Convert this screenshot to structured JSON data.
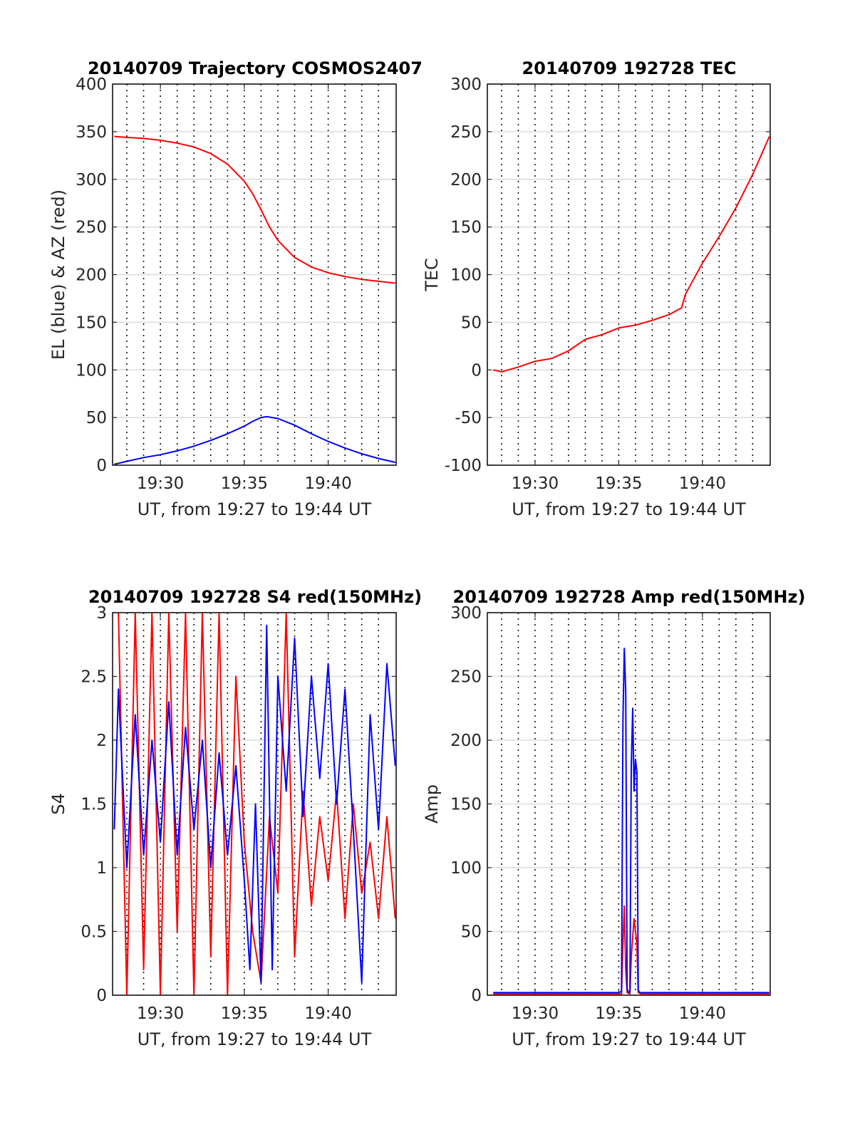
{
  "chart_data": [
    {
      "type": "line",
      "title": "20140709 Trajectory COSMOS2407",
      "xlabel": "UT, from 19:27 to 19:44 UT",
      "ylabel": "EL (blue) & AZ (red)",
      "xlim_minutes_after_19_27": [
        0,
        17
      ],
      "xticks": [
        "19:30",
        "19:35",
        "19:40"
      ],
      "ylim": [
        0,
        400
      ],
      "yticks": [
        "0",
        "50",
        "100",
        "150",
        "200",
        "250",
        "300",
        "350",
        "400"
      ],
      "grid": "on",
      "series": [
        {
          "color": "#ff0000",
          "x": [
            "19:27:15",
            "19:28",
            "19:29",
            "19:30",
            "19:31",
            "19:32",
            "19:33",
            "19:34",
            "19:35",
            "19:35:30",
            "19:36",
            "19:36:30",
            "19:37",
            "19:38",
            "19:39",
            "19:40",
            "19:41",
            "19:42",
            "19:43",
            "19:44"
          ],
          "values": [
            345,
            344,
            343,
            341,
            338,
            334,
            327,
            316,
            298,
            285,
            268,
            250,
            236,
            218,
            208,
            202,
            198,
            195,
            193,
            191
          ]
        },
        {
          "color": "#0000ff",
          "x": [
            "19:27:15",
            "19:28",
            "19:29",
            "19:30",
            "19:31",
            "19:32",
            "19:33",
            "19:34",
            "19:35",
            "19:35:30",
            "19:36",
            "19:36:20",
            "19:37",
            "19:38",
            "19:39",
            "19:40",
            "19:41",
            "19:42",
            "19:43",
            "19:44"
          ],
          "values": [
            1,
            4,
            8,
            11,
            15,
            20,
            26,
            33,
            41,
            46,
            50,
            51,
            49,
            42,
            33,
            25,
            18,
            12,
            7,
            3
          ]
        }
      ]
    },
    {
      "type": "line",
      "title": "20140709 192728 TEC",
      "xlabel": "UT, from 19:27 to 19:44 UT",
      "ylabel": "TEC",
      "xticks": [
        "19:30",
        "19:35",
        "19:40"
      ],
      "ylim": [
        -100,
        300
      ],
      "yticks": [
        "-100",
        "-50",
        "0",
        "50",
        "100",
        "150",
        "200",
        "250",
        "300"
      ],
      "grid": "on",
      "series": [
        {
          "color": "#ff0000",
          "x": [
            "19:27:30",
            "19:28",
            "19:29",
            "19:30",
            "19:31",
            "19:32",
            "19:33",
            "19:34",
            "19:35",
            "19:36",
            "19:37",
            "19:38",
            "19:38:45",
            "19:39",
            "19:40",
            "19:41",
            "19:42",
            "19:43",
            "19:44"
          ],
          "values": [
            0,
            -2,
            3,
            9,
            12,
            20,
            32,
            37,
            44,
            47,
            52,
            58,
            65,
            80,
            112,
            140,
            170,
            205,
            245
          ]
        }
      ]
    },
    {
      "type": "line",
      "title": "20140709 192728 S4 red(150MHz)",
      "xlabel": "UT, from 19:27 to 19:44 UT",
      "ylabel": "S4",
      "xticks": [
        "19:30",
        "19:35",
        "19:40"
      ],
      "ylim": [
        0,
        3
      ],
      "yticks": [
        "0",
        "0.5",
        "1",
        "1.5",
        "2",
        "2.5",
        "3"
      ],
      "grid": "on",
      "series": [
        {
          "color": "#ff0000",
          "x": [
            "19:27:30",
            "19:28",
            "19:28:30",
            "19:29",
            "19:29:30",
            "19:30",
            "19:30:30",
            "19:31",
            "19:31:30",
            "19:32",
            "19:32:30",
            "19:33",
            "19:33:30",
            "19:34",
            "19:34:30",
            "19:35",
            "19:35:30",
            "19:36",
            "19:36:30",
            "19:37",
            "19:37:30",
            "19:38",
            "19:38:30",
            "19:39",
            "19:39:30",
            "19:40",
            "19:40:30",
            "19:41",
            "19:41:30",
            "19:42",
            "19:42:30",
            "19:43",
            "19:43:30",
            "19:44"
          ],
          "values": [
            3,
            0,
            3,
            0.2,
            3,
            0,
            3,
            0.5,
            3,
            0,
            3,
            0.3,
            3,
            0,
            2.5,
            1.2,
            0.5,
            0.1,
            1.4,
            0.8,
            3,
            0.3,
            1.6,
            0.7,
            1.4,
            0.9,
            1.6,
            0.6,
            1.5,
            0.8,
            1.2,
            0.6,
            1.4,
            0.6
          ]
        },
        {
          "color": "#0000ff",
          "x": [
            "19:27:15",
            "19:27:30",
            "19:28",
            "19:28:30",
            "19:29",
            "19:29:30",
            "19:30",
            "19:30:30",
            "19:31",
            "19:31:30",
            "19:32",
            "19:32:30",
            "19:33",
            "19:33:30",
            "19:34",
            "19:34:30",
            "19:35",
            "19:35:20",
            "19:35:40",
            "19:36",
            "19:36:20",
            "19:36:40",
            "19:37",
            "19:37:30",
            "19:38",
            "19:38:30",
            "19:39",
            "19:39:30",
            "19:40",
            "19:40:30",
            "19:41",
            "19:41:30",
            "19:42",
            "19:42:30",
            "19:43",
            "19:43:30",
            "19:44"
          ],
          "values": [
            1.3,
            2.4,
            1.0,
            2.2,
            1.1,
            2.0,
            1.2,
            2.3,
            1.1,
            2.1,
            1.3,
            2.0,
            1.0,
            1.9,
            1.1,
            1.8,
            0.9,
            0.2,
            1.5,
            0.1,
            2.9,
            0.2,
            2.5,
            1.6,
            2.8,
            1.4,
            2.5,
            1.7,
            2.6,
            1.5,
            2.4,
            1.3,
            0.1,
            2.2,
            1.3,
            2.6,
            1.8
          ]
        }
      ]
    },
    {
      "type": "line",
      "title": "20140709 192728 Amp red(150MHz)",
      "xlabel": "UT, from 19:27 to 19:44 UT",
      "ylabel": "Amp",
      "xticks": [
        "19:30",
        "19:35",
        "19:40"
      ],
      "ylim": [
        0,
        300
      ],
      "yticks": [
        "0",
        "50",
        "100",
        "150",
        "200",
        "250",
        "300"
      ],
      "grid": "on",
      "series": [
        {
          "color": "#ff0000",
          "x": [
            "19:27:30",
            "19:35:10",
            "19:35:15",
            "19:35:20",
            "19:35:25",
            "19:35:30",
            "19:35:40",
            "19:35:45",
            "19:35:55",
            "19:36:05",
            "19:36:10",
            "19:36:20",
            "19:44"
          ],
          "values": [
            1,
            1,
            40,
            70,
            20,
            2,
            1,
            30,
            60,
            40,
            2,
            1,
            1
          ]
        },
        {
          "color": "#0000ff",
          "x": [
            "19:27:30",
            "19:32",
            "19:35",
            "19:35:10",
            "19:35:15",
            "19:35:20",
            "19:35:25",
            "19:35:30",
            "19:35:35",
            "19:35:40",
            "19:35:45",
            "19:35:50",
            "19:35:55",
            "19:36:00",
            "19:36:05",
            "19:36:10",
            "19:36:15",
            "19:36:20",
            "19:40",
            "19:44"
          ],
          "values": [
            2,
            2,
            2,
            3,
            215,
            272,
            238,
            5,
            2,
            3,
            180,
            225,
            160,
            185,
            175,
            4,
            2,
            2,
            2,
            2
          ]
        }
      ]
    }
  ]
}
